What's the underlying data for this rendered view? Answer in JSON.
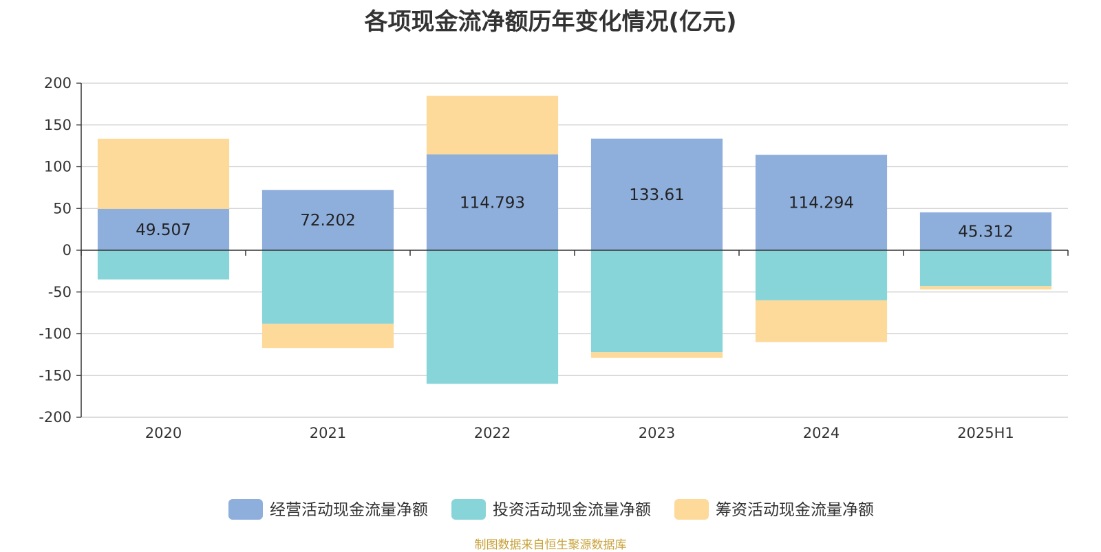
{
  "chart_data": {
    "type": "bar",
    "stacked": true,
    "title": "各项现金流净额历年变化情况(亿元)",
    "categories": [
      "2020",
      "2021",
      "2022",
      "2023",
      "2024",
      "2025H1"
    ],
    "ylim": [
      -200,
      200
    ],
    "yticks": [
      200,
      150,
      100,
      50,
      0,
      -50,
      -100,
      -150,
      -200
    ],
    "grid": true,
    "legend_position": "bottom",
    "series": [
      {
        "name": "经营活动现金流量净额",
        "color": "#8eaedc",
        "values": [
          49.507,
          72.202,
          114.793,
          133.61,
          114.294,
          45.312
        ],
        "labels": [
          "49.507",
          "72.202",
          "114.793",
          "133.61",
          "114.294",
          "45.312"
        ]
      },
      {
        "name": "投资活动现金流量净额",
        "color": "#88d5d9",
        "values": [
          -35,
          -88,
          -160,
          -122,
          -60,
          -43
        ]
      },
      {
        "name": "筹资活动现金流量净额",
        "color": "#fdd99a",
        "values": [
          84,
          -29,
          70,
          -7,
          -50,
          -4
        ]
      }
    ]
  },
  "source_note": "制图数据来自恒生聚源数据库"
}
